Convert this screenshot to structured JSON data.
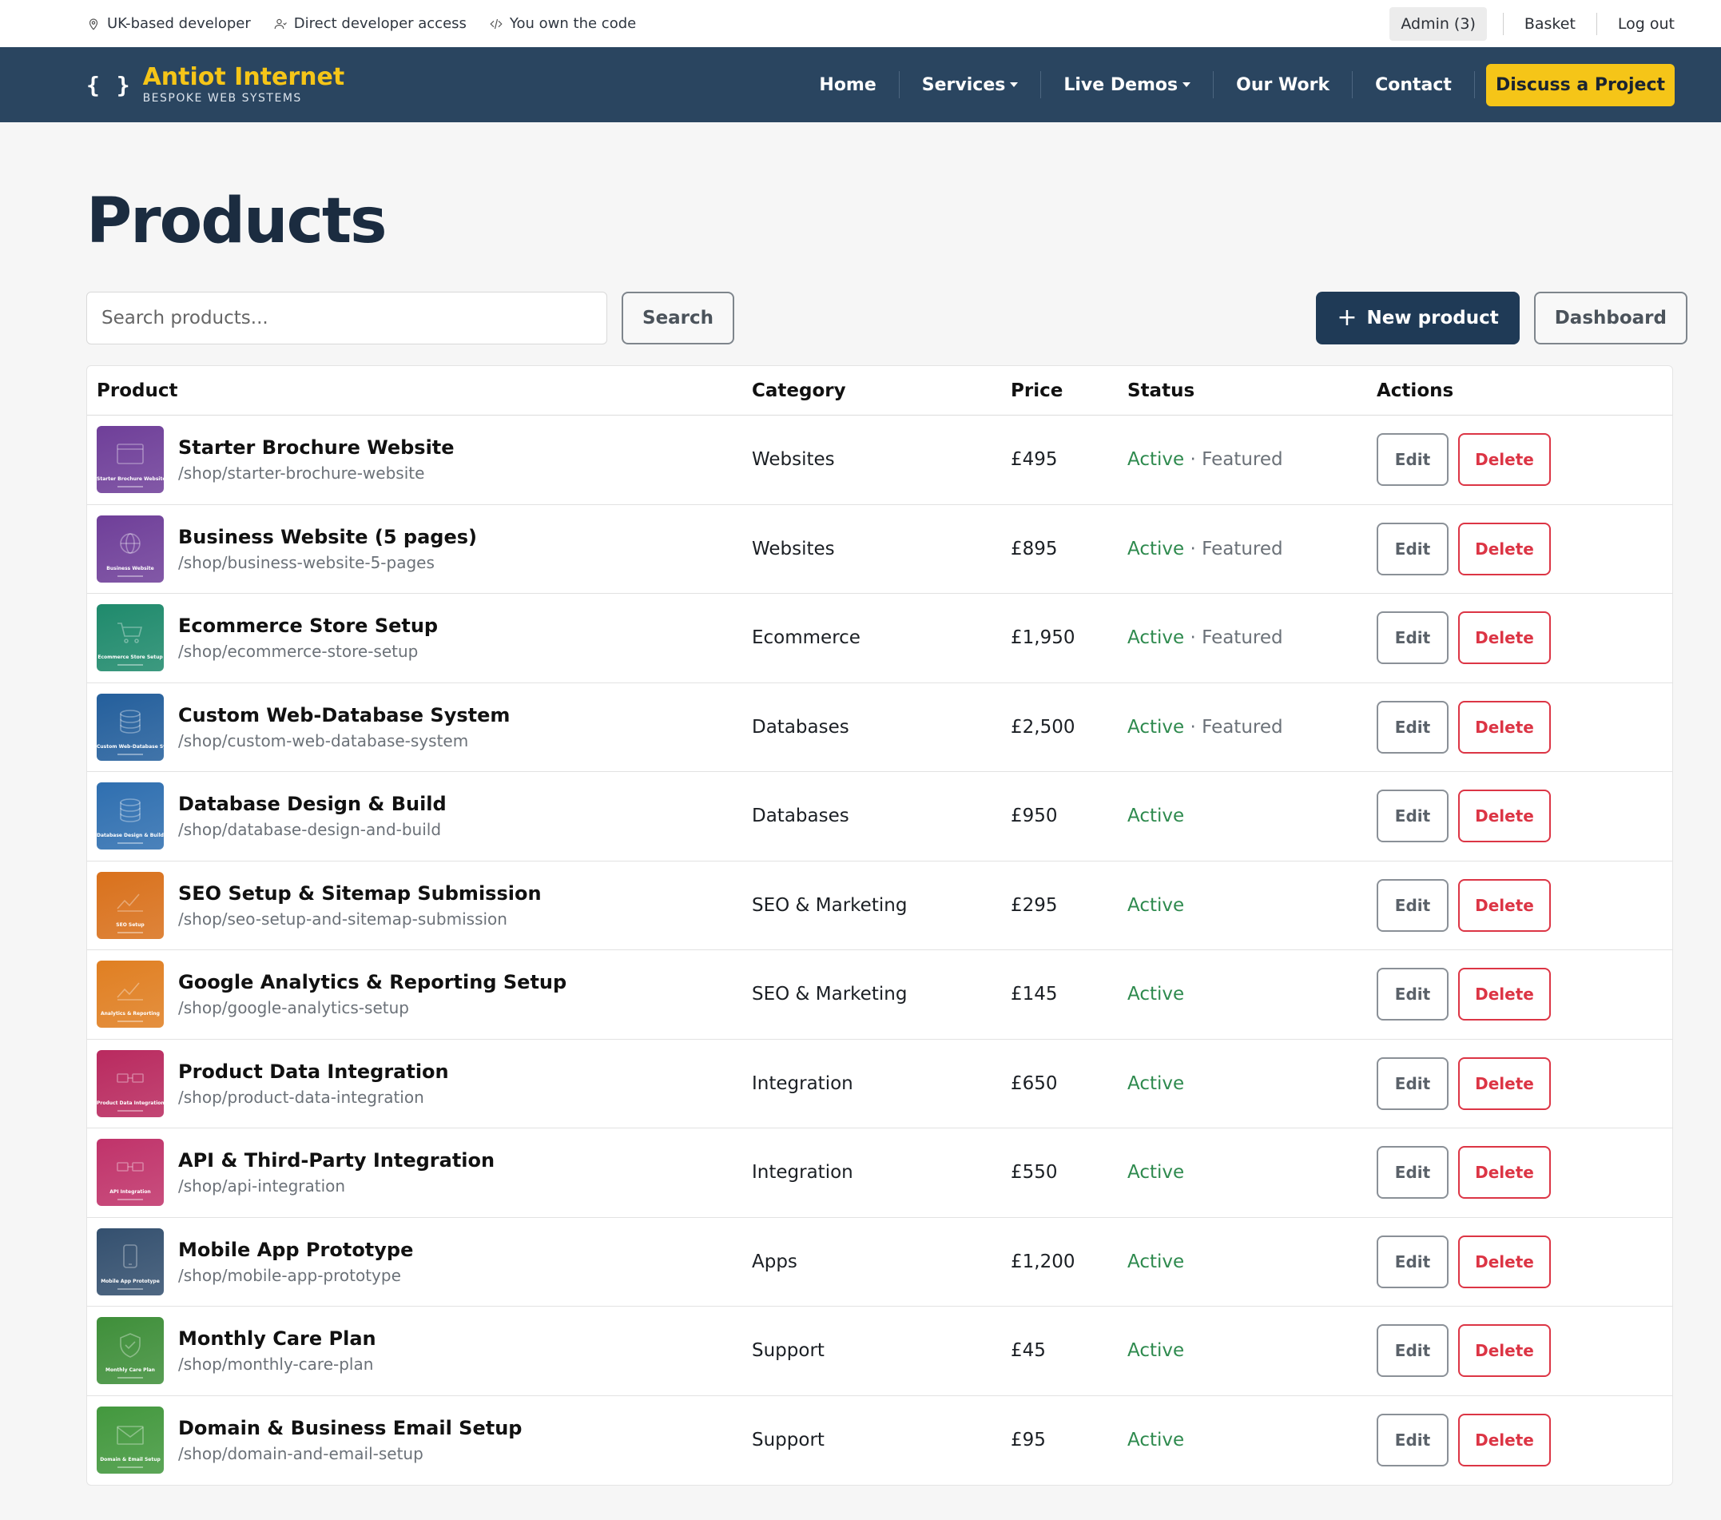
{
  "topbar": {
    "items": [
      {
        "icon": "location-pin-icon",
        "label": "UK-based developer"
      },
      {
        "icon": "person-icon",
        "label": "Direct developer access"
      },
      {
        "icon": "code-icon",
        "label": "You own the code"
      }
    ],
    "admin_label": "Admin (3)",
    "basket_label": "Basket",
    "logout_label": "Log out"
  },
  "navbar": {
    "brand_symbol": "{ }",
    "brand_name": "Antiot Internet",
    "brand_tagline": "BESPOKE WEB SYSTEMS",
    "links": [
      "Home",
      "Services",
      "Live Demos",
      "Our Work",
      "Contact"
    ],
    "cta_label": "Discuss a Project"
  },
  "main": {
    "title": "Products",
    "search_placeholder": "Search products...",
    "search_button": "Search",
    "new_button": "New product",
    "dashboard_button": "Dashboard"
  },
  "table": {
    "headers": {
      "product": "Product",
      "category": "Category",
      "price": "Price",
      "status": "Status",
      "actions": "Actions"
    },
    "edit_label": "Edit",
    "delete_label": "Delete",
    "rows": [
      {
        "name": "Starter Brochure Website",
        "slug": "/shop/starter-brochure-website",
        "thumb_label": "Starter Brochure Website",
        "icon": "browser-window-icon",
        "color": "#6f3f99",
        "category": "Websites",
        "price": "£495",
        "status": "Active",
        "featured": "Featured"
      },
      {
        "name": "Business Website (5 pages)",
        "slug": "/shop/business-website-5-pages",
        "thumb_label": "Business Website",
        "icon": "globe-icon",
        "color": "#6f3f99",
        "category": "Websites",
        "price": "£895",
        "status": "Active",
        "featured": "Featured"
      },
      {
        "name": "Ecommerce Store Setup",
        "slug": "/shop/ecommerce-store-setup",
        "thumb_label": "Ecommerce Store Setup",
        "icon": "cart-icon",
        "color": "#1f8a6c",
        "category": "Ecommerce",
        "price": "£1,950",
        "status": "Active",
        "featured": "Featured"
      },
      {
        "name": "Custom Web-Database System",
        "slug": "/shop/custom-web-database-system",
        "thumb_label": "Custom Web-Database System",
        "icon": "database-icon",
        "color": "#245f9c",
        "category": "Databases",
        "price": "£2,500",
        "status": "Active",
        "featured": "Featured"
      },
      {
        "name": "Database Design & Build",
        "slug": "/shop/database-design-and-build",
        "thumb_label": "Database Design & Build",
        "icon": "database-icon",
        "color": "#2f6fb0",
        "category": "Databases",
        "price": "£950",
        "status": "Active",
        "featured": ""
      },
      {
        "name": "SEO Setup & Sitemap Submission",
        "slug": "/shop/seo-setup-and-sitemap-submission",
        "thumb_label": "SEO Setup",
        "icon": "trend-chart-icon",
        "color": "#d9711c",
        "category": "SEO & Marketing",
        "price": "£295",
        "status": "Active",
        "featured": ""
      },
      {
        "name": "Google Analytics & Reporting Setup",
        "slug": "/shop/google-analytics-setup",
        "thumb_label": "Analytics & Reporting",
        "icon": "trend-chart-icon",
        "color": "#e07f22",
        "category": "SEO & Marketing",
        "price": "£145",
        "status": "Active",
        "featured": ""
      },
      {
        "name": "Product Data Integration",
        "slug": "/shop/product-data-integration",
        "thumb_label": "Product Data Integration",
        "icon": "link-icon",
        "color": "#b92a5f",
        "category": "Integration",
        "price": "£650",
        "status": "Active",
        "featured": ""
      },
      {
        "name": "API & Third-Party Integration",
        "slug": "/shop/api-integration",
        "thumb_label": "API Integration",
        "icon": "link-icon",
        "color": "#c0336a",
        "category": "Integration",
        "price": "£550",
        "status": "Active",
        "featured": ""
      },
      {
        "name": "Mobile App Prototype",
        "slug": "/shop/mobile-app-prototype",
        "thumb_label": "Mobile App Prototype",
        "icon": "phone-icon",
        "color": "#34506f",
        "category": "Apps",
        "price": "£1,200",
        "status": "Active",
        "featured": ""
      },
      {
        "name": "Monthly Care Plan",
        "slug": "/shop/monthly-care-plan",
        "thumb_label": "Monthly Care Plan",
        "icon": "shield-icon",
        "color": "#3f8f3a",
        "category": "Support",
        "price": "£45",
        "status": "Active",
        "featured": ""
      },
      {
        "name": "Domain & Business Email Setup",
        "slug": "/shop/domain-and-email-setup",
        "thumb_label": "Domain & Email Setup",
        "icon": "envelope-icon",
        "color": "#43983e",
        "category": "Support",
        "price": "£95",
        "status": "Active",
        "featured": ""
      }
    ]
  }
}
